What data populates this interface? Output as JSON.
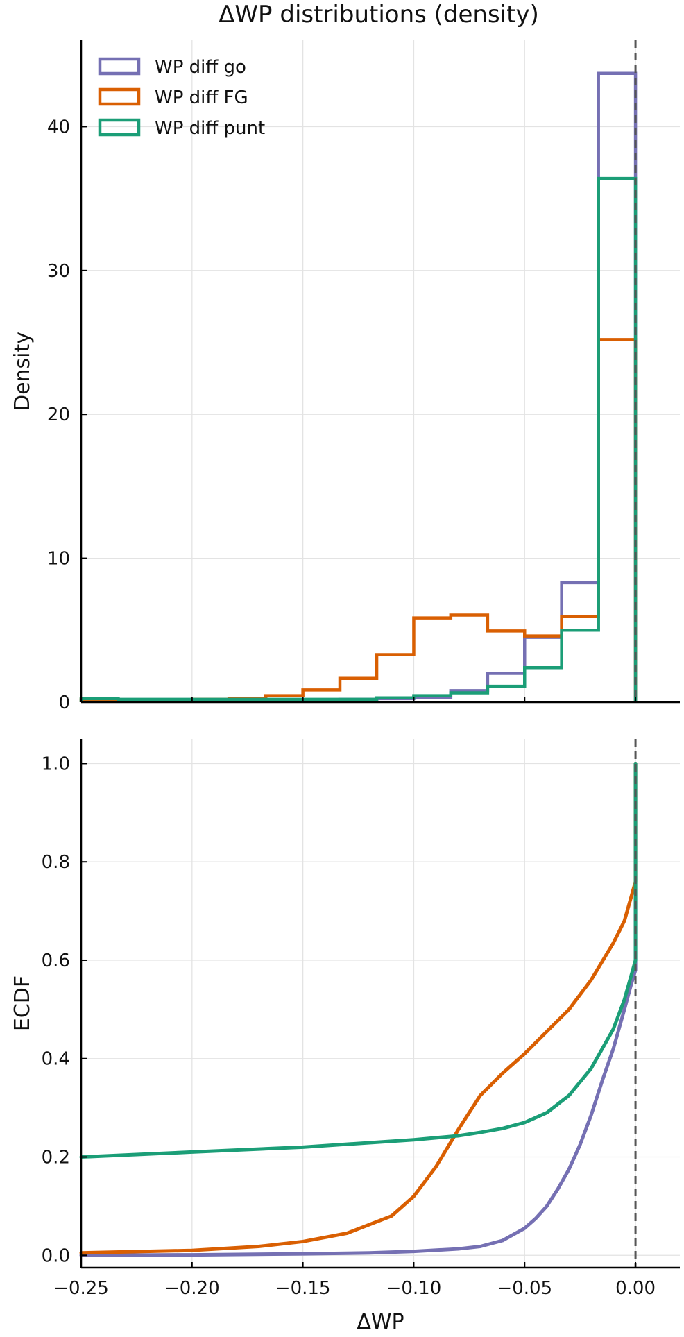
{
  "title": "ΔWP distributions (density)",
  "colors": {
    "go": "#7570b3",
    "fg": "#d95f02",
    "punt": "#1b9e77",
    "ref_line": "#555555",
    "grid": "#e3e3e3"
  },
  "chart_data": [
    {
      "type": "histogram",
      "ylabel": "Density",
      "xlim": [
        -0.25,
        0.02
      ],
      "ylim": [
        0,
        46
      ],
      "yticks": [
        0,
        10,
        20,
        30,
        40
      ],
      "ytick_labels": [
        "0",
        "10",
        "20",
        "30",
        "40"
      ],
      "xticks": [
        -0.25,
        -0.2,
        -0.15,
        -0.1,
        -0.05,
        0.0
      ],
      "reference_line_x": 0.0,
      "legend": {
        "placement": "top-left",
        "entries": [
          "WP diff go",
          "WP diff FG",
          "WP diff punt"
        ]
      },
      "bin_edges": [
        -0.25,
        -0.2333,
        -0.2167,
        -0.2,
        -0.1833,
        -0.1667,
        -0.15,
        -0.1333,
        -0.1167,
        -0.1,
        -0.0833,
        -0.0667,
        -0.05,
        -0.0333,
        -0.0167,
        0.0
      ],
      "series": [
        {
          "name": "WP diff go",
          "color_key": "go",
          "values": [
            0.1,
            0.1,
            0.1,
            0.1,
            0.1,
            0.1,
            0.15,
            0.2,
            0.25,
            0.3,
            0.8,
            2.0,
            4.5,
            8.3,
            43.7
          ]
        },
        {
          "name": "WP diff FG",
          "color_key": "fg",
          "values": [
            0.2,
            0.15,
            0.15,
            0.2,
            0.25,
            0.45,
            0.85,
            1.65,
            3.3,
            5.85,
            6.05,
            4.95,
            4.6,
            5.95,
            25.2
          ]
        },
        {
          "name": "WP diff punt",
          "color_key": "punt",
          "values": [
            0.25,
            0.2,
            0.2,
            0.2,
            0.2,
            0.2,
            0.2,
            0.2,
            0.3,
            0.45,
            0.65,
            1.1,
            2.4,
            5.0,
            36.4
          ]
        }
      ]
    },
    {
      "type": "line",
      "ylabel": "ECDF",
      "xlabel": "ΔWP",
      "xlim": [
        -0.25,
        0.02
      ],
      "ylim": [
        -0.025,
        1.05
      ],
      "yticks": [
        0.0,
        0.2,
        0.4,
        0.6,
        0.8,
        1.0
      ],
      "ytick_labels": [
        "0.0",
        "0.2",
        "0.4",
        "0.6",
        "0.8",
        "1.0"
      ],
      "xticks": [
        -0.25,
        -0.2,
        -0.15,
        -0.1,
        -0.05,
        0.0
      ],
      "xtick_labels": [
        "−0.25",
        "−0.20",
        "−0.15",
        "−0.10",
        "−0.05",
        "0.00"
      ],
      "reference_line_x": 0.0,
      "series": [
        {
          "name": "WP diff go",
          "color_key": "go",
          "x": [
            -0.25,
            -0.2,
            -0.15,
            -0.12,
            -0.1,
            -0.08,
            -0.07,
            -0.06,
            -0.05,
            -0.045,
            -0.04,
            -0.035,
            -0.03,
            -0.025,
            -0.02,
            -0.015,
            -0.01,
            -0.005,
            -0.002,
            0.0,
            0.0
          ],
          "y": [
            0.0,
            0.001,
            0.003,
            0.005,
            0.008,
            0.013,
            0.018,
            0.03,
            0.055,
            0.075,
            0.1,
            0.135,
            0.175,
            0.225,
            0.285,
            0.355,
            0.42,
            0.5,
            0.55,
            0.58,
            1.0
          ]
        },
        {
          "name": "WP diff FG",
          "color_key": "fg",
          "x": [
            -0.25,
            -0.2,
            -0.17,
            -0.15,
            -0.13,
            -0.11,
            -0.1,
            -0.09,
            -0.08,
            -0.07,
            -0.06,
            -0.05,
            -0.04,
            -0.03,
            -0.02,
            -0.01,
            -0.005,
            0.0,
            0.0
          ],
          "y": [
            0.005,
            0.01,
            0.018,
            0.028,
            0.045,
            0.08,
            0.12,
            0.18,
            0.255,
            0.325,
            0.37,
            0.41,
            0.455,
            0.5,
            0.56,
            0.635,
            0.68,
            0.76,
            1.0
          ]
        },
        {
          "name": "WP diff punt",
          "color_key": "punt",
          "x": [
            -0.25,
            -0.2,
            -0.15,
            -0.1,
            -0.08,
            -0.07,
            -0.06,
            -0.05,
            -0.04,
            -0.03,
            -0.02,
            -0.01,
            -0.005,
            0.0,
            0.0
          ],
          "y": [
            0.2,
            0.21,
            0.22,
            0.235,
            0.243,
            0.25,
            0.258,
            0.27,
            0.29,
            0.325,
            0.38,
            0.46,
            0.52,
            0.6,
            1.0
          ]
        }
      ]
    }
  ]
}
